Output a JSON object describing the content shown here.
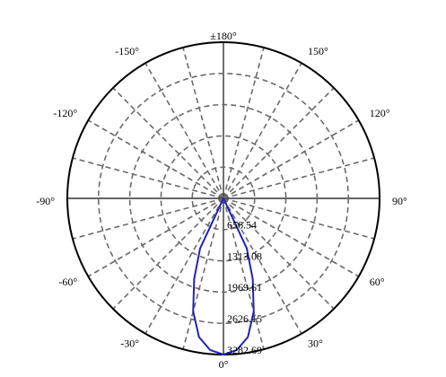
{
  "chart_data": {
    "type": "polar-line",
    "title": "",
    "angle_ticks": [
      {
        "deg": 180,
        "label": "±180°"
      },
      {
        "deg": 150,
        "label": "150°"
      },
      {
        "deg": -150,
        "label": "-150°"
      },
      {
        "deg": 120,
        "label": "120°"
      },
      {
        "deg": -120,
        "label": "-120°"
      },
      {
        "deg": 90,
        "label": "90°"
      },
      {
        "deg": -90,
        "label": "-90°"
      },
      {
        "deg": 60,
        "label": "60°"
      },
      {
        "deg": -60,
        "label": "-60°"
      },
      {
        "deg": 30,
        "label": "30°"
      },
      {
        "deg": -30,
        "label": "-30°"
      },
      {
        "deg": 0,
        "label": "0°"
      }
    ],
    "radial_ticks": [
      {
        "value": 656.54,
        "label": "656.54"
      },
      {
        "value": 1313.08,
        "label": "1313.08"
      },
      {
        "value": 1969.61,
        "label": "1969.61"
      },
      {
        "value": 2626.15,
        "label": "2626.15"
      },
      {
        "value": 3282.69,
        "label": "3282.69"
      }
    ],
    "r_max": 3282.69,
    "angular_grid_step_deg": 15,
    "grid": true,
    "series": [
      {
        "color": "#2222bb",
        "points": [
          {
            "angle": -35,
            "value": 0
          },
          {
            "angle": -25,
            "value": 1160
          },
          {
            "angle": -20,
            "value": 1800
          },
          {
            "angle": -15,
            "value": 2460
          },
          {
            "angle": -10,
            "value": 2960
          },
          {
            "angle": -5,
            "value": 3200
          },
          {
            "angle": 0,
            "value": 3282.69
          },
          {
            "angle": 5,
            "value": 3200
          },
          {
            "angle": 10,
            "value": 2960
          },
          {
            "angle": 15,
            "value": 2460
          },
          {
            "angle": 20,
            "value": 1800
          },
          {
            "angle": 25,
            "value": 1160
          },
          {
            "angle": 35,
            "value": 0
          }
        ]
      }
    ]
  }
}
